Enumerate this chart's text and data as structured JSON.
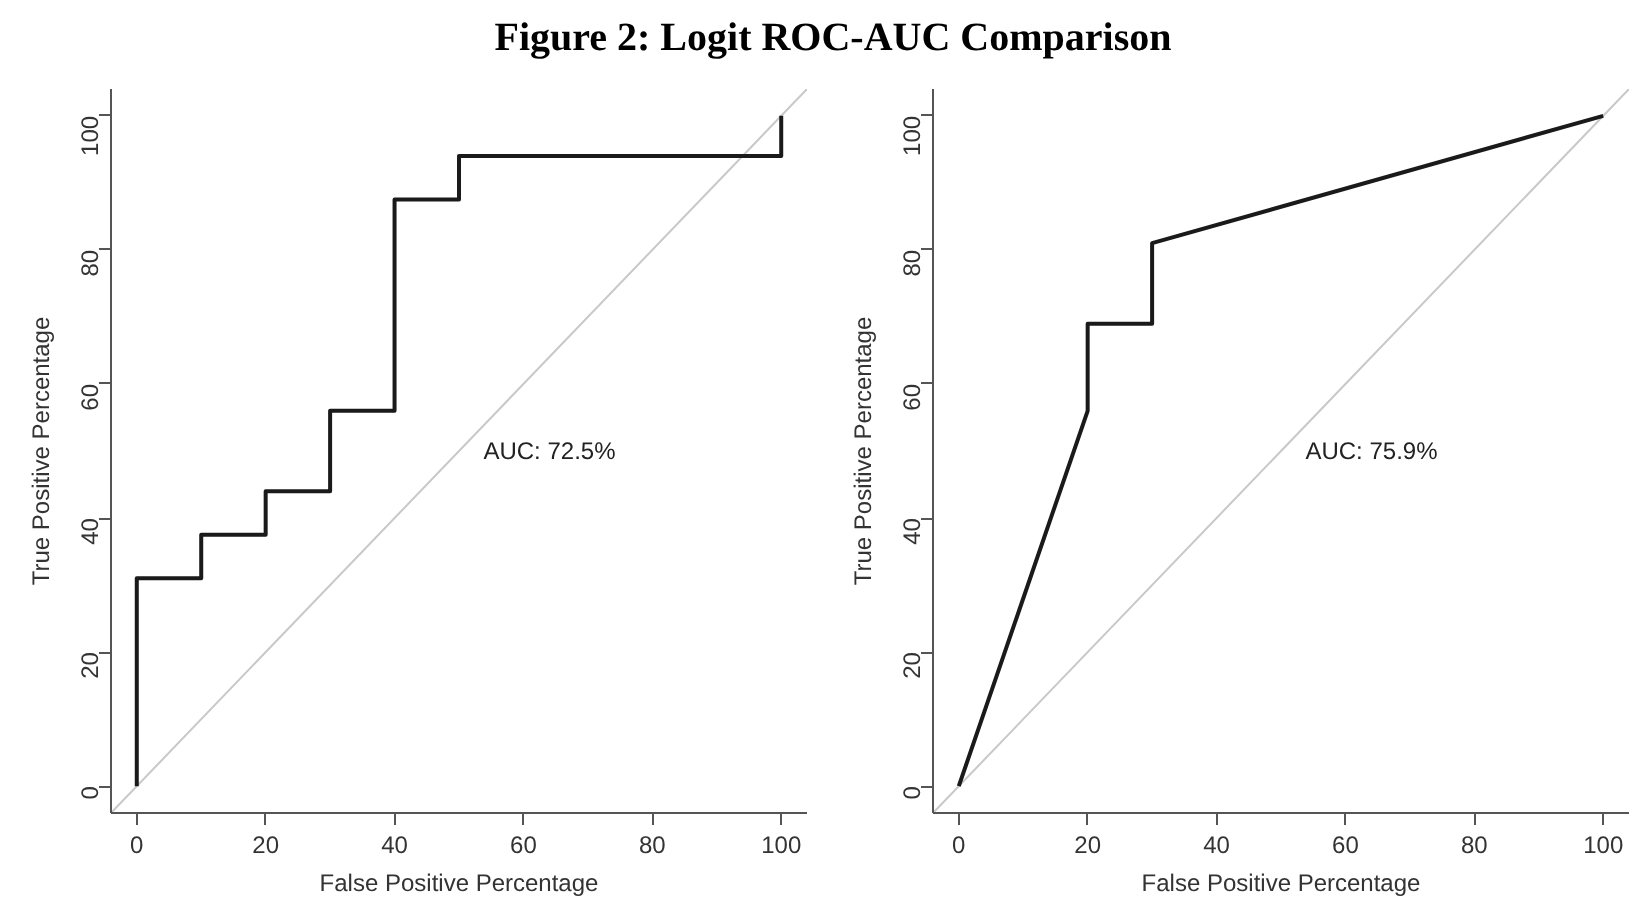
{
  "chart_data": [
    {
      "type": "line",
      "title": "Figure 2: Logit ROC-AUC Comparison",
      "xlabel": "False Positive Percentage",
      "ylabel": "True Positive Percentage",
      "xlim": [
        -4,
        104
      ],
      "ylim": [
        -4,
        104
      ],
      "xticks": [
        0,
        20,
        40,
        60,
        80,
        100
      ],
      "yticks": [
        0,
        20,
        40,
        60,
        80,
        100
      ],
      "grid": false,
      "series": [
        {
          "color": "#c8c8c8",
          "x": [
            -4,
            104
          ],
          "values": [
            -4,
            104
          ]
        },
        {
          "color": "#1a1a1a",
          "x": [
            0,
            0,
            10,
            10,
            20,
            20,
            30,
            30,
            40,
            40,
            50,
            50,
            100,
            100
          ],
          "values": [
            0,
            31,
            31,
            37.5,
            37.5,
            44,
            44,
            56,
            56,
            87.5,
            87.5,
            94,
            94,
            100
          ]
        }
      ],
      "annotations": [
        "AUC: 72.5%"
      ]
    },
    {
      "type": "line",
      "xlabel": "False Positive Percentage",
      "ylabel": "True Positive Percentage",
      "xlim": [
        -4,
        104
      ],
      "ylim": [
        -4,
        104
      ],
      "xticks": [
        0,
        20,
        40,
        60,
        80,
        100
      ],
      "yticks": [
        0,
        20,
        40,
        60,
        80,
        100
      ],
      "grid": false,
      "series": [
        {
          "color": "#c8c8c8",
          "x": [
            -4,
            104
          ],
          "values": [
            -4,
            104
          ]
        },
        {
          "color": "#1a1a1a",
          "x": [
            0,
            20,
            20,
            30,
            30,
            100
          ],
          "values": [
            0,
            56,
            69,
            69,
            81,
            100
          ]
        }
      ],
      "annotations": [
        "AUC: 75.9%"
      ]
    }
  ]
}
